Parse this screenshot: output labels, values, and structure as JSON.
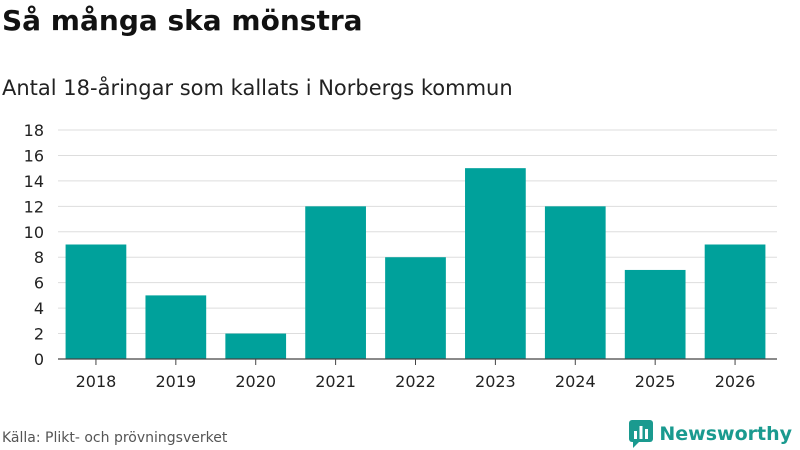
{
  "title": "Så många ska mönstra",
  "subtitle": "Antal 18-åringar som kallats i Norbergs kommun",
  "source": "Källa: Plikt- och prövningsverket",
  "brand": {
    "name": "Newsworthy",
    "icon": "bar-chart-logo-icon",
    "color": "#1a9a8f"
  },
  "chart_data": {
    "type": "bar",
    "categories": [
      "2018",
      "2019",
      "2020",
      "2021",
      "2022",
      "2023",
      "2024",
      "2025",
      "2026"
    ],
    "values": [
      9,
      5,
      2,
      12,
      8,
      15,
      12,
      7,
      9
    ],
    "ylim": [
      0,
      18
    ],
    "yticks": [
      0,
      2,
      4,
      6,
      8,
      10,
      12,
      14,
      16,
      18
    ],
    "grid": true,
    "legend": "none",
    "bar_color": "#00a19b"
  }
}
